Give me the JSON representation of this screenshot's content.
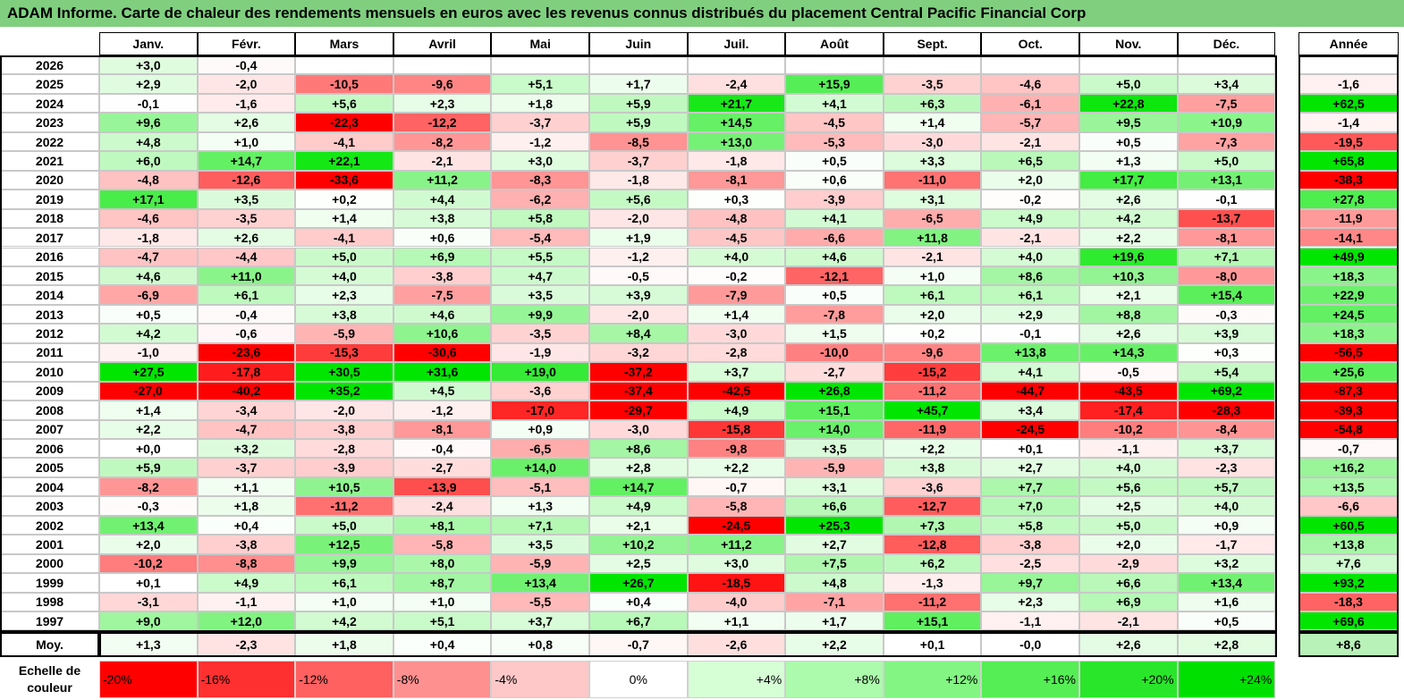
{
  "title": "ADAM Informe. Carte de chaleur des rendements mensuels en euros avec les revenus connus distribués du placement Central Pacific Financial Corp",
  "months": [
    "Janv.",
    "Févr.",
    "Mars",
    "Avril",
    "Mai",
    "Juin",
    "Juil.",
    "Août",
    "Sept.",
    "Oct.",
    "Nov.",
    "Déc."
  ],
  "year_header": "Année",
  "avg_label": "Moy.",
  "scale_label": "Echelle de couleur",
  "scale": [
    "-20%",
    "-16%",
    "-12%",
    "-8%",
    "-4%",
    "0%",
    "+4%",
    "+8%",
    "+12%",
    "+16%",
    "+20%",
    "+24%"
  ],
  "colors": {
    "negative": "#f8696b",
    "neutral": "#ffffff",
    "positive": "#63be7b",
    "header_bg": "#7fcf7f"
  },
  "chart_data": {
    "type": "heatmap",
    "title": "ADAM Informe. Carte de chaleur des rendements mensuels en euros avec les revenus connus distribués du placement Central Pacific Financial Corp",
    "columns": [
      "Janv.",
      "Févr.",
      "Mars",
      "Avril",
      "Mai",
      "Juin",
      "Juil.",
      "Août",
      "Sept.",
      "Oct.",
      "Nov.",
      "Déc."
    ],
    "rows": [
      {
        "year": "2026",
        "m": [
          "+3,0",
          "-0,4",
          "",
          "",
          "",
          "",
          "",
          "",
          "",
          "",
          "",
          ""
        ],
        "y": ""
      },
      {
        "year": "2025",
        "m": [
          "+2,9",
          "-2,0",
          "-10,5",
          "-9,6",
          "+5,1",
          "+1,7",
          "-2,4",
          "+15,9",
          "-3,5",
          "-4,6",
          "+5,0",
          "+3,4"
        ],
        "y": "-1,6"
      },
      {
        "year": "2024",
        "m": [
          "-0,1",
          "-1,6",
          "+5,6",
          "+2,3",
          "+1,8",
          "+5,9",
          "+21,7",
          "+4,1",
          "+6,3",
          "-6,1",
          "+22,8",
          "-7,5"
        ],
        "y": "+62,5"
      },
      {
        "year": "2023",
        "m": [
          "+9,6",
          "+2,6",
          "-22,3",
          "-12,2",
          "-3,7",
          "+5,9",
          "+14,5",
          "-4,5",
          "+1,4",
          "-5,7",
          "+9,5",
          "+10,9"
        ],
        "y": "-1,4"
      },
      {
        "year": "2022",
        "m": [
          "+4,8",
          "+1,0",
          "-4,1",
          "-8,2",
          "-1,2",
          "-8,5",
          "+13,0",
          "-5,3",
          "-3,0",
          "-2,1",
          "+0,5",
          "-7,3"
        ],
        "y": "-19,5"
      },
      {
        "year": "2021",
        "m": [
          "+6,0",
          "+14,7",
          "+22,1",
          "-2,1",
          "+3,0",
          "-3,7",
          "-1,8",
          "+0,5",
          "+3,3",
          "+6,5",
          "+1,3",
          "+5,0"
        ],
        "y": "+65,8"
      },
      {
        "year": "2020",
        "m": [
          "-4,8",
          "-12,6",
          "-33,6",
          "+11,2",
          "-8,3",
          "-1,8",
          "-8,1",
          "+0,6",
          "-11,0",
          "+2,0",
          "+17,7",
          "+13,1"
        ],
        "y": "-38,3"
      },
      {
        "year": "2019",
        "m": [
          "+17,1",
          "+3,5",
          "+0,2",
          "+4,4",
          "-6,2",
          "+5,6",
          "+0,3",
          "-3,9",
          "+3,1",
          "-0,2",
          "+2,6",
          "-0,1"
        ],
        "y": "+27,8"
      },
      {
        "year": "2018",
        "m": [
          "-4,6",
          "-3,5",
          "+1,4",
          "+3,8",
          "+5,8",
          "-2,0",
          "-4,8",
          "+4,1",
          "-6,5",
          "+4,9",
          "+4,2",
          "-13,7"
        ],
        "y": "-11,9"
      },
      {
        "year": "2017",
        "m": [
          "-1,8",
          "+2,6",
          "-4,1",
          "+0,6",
          "-5,4",
          "+1,9",
          "-4,5",
          "-6,6",
          "+11,8",
          "-2,1",
          "+2,2",
          "-8,1"
        ],
        "y": "-14,1"
      },
      {
        "year": "2016",
        "m": [
          "-4,7",
          "-4,4",
          "+5,0",
          "+6,9",
          "+5,5",
          "-1,2",
          "+4,0",
          "+4,6",
          "-2,1",
          "+4,0",
          "+19,6",
          "+7,1"
        ],
        "y": "+49,9"
      },
      {
        "year": "2015",
        "m": [
          "+4,6",
          "+11,0",
          "+4,0",
          "-3,8",
          "+4,7",
          "-0,5",
          "-0,2",
          "-12,1",
          "+1,0",
          "+8,6",
          "+10,3",
          "-8,0"
        ],
        "y": "+18,3"
      },
      {
        "year": "2014",
        "m": [
          "-6,9",
          "+6,1",
          "+2,3",
          "-7,5",
          "+3,5",
          "+3,9",
          "-7,9",
          "+0,5",
          "+6,1",
          "+6,1",
          "+2,1",
          "+15,4"
        ],
        "y": "+22,9"
      },
      {
        "year": "2013",
        "m": [
          "+0,5",
          "-0,4",
          "+3,8",
          "+4,6",
          "+9,9",
          "-2,0",
          "+1,4",
          "-7,8",
          "+2,0",
          "+2,9",
          "+8,8",
          "-0,3"
        ],
        "y": "+24,5"
      },
      {
        "year": "2012",
        "m": [
          "+4,2",
          "-0,6",
          "-5,9",
          "+10,6",
          "-3,5",
          "+8,4",
          "-3,0",
          "+1,5",
          "+0,2",
          "-0,1",
          "+2,6",
          "+3,9"
        ],
        "y": "+18,3"
      },
      {
        "year": "2011",
        "m": [
          "-1,0",
          "-23,6",
          "-15,3",
          "-30,6",
          "-1,9",
          "-3,2",
          "-2,8",
          "-10,0",
          "-9,6",
          "+13,8",
          "+14,3",
          "+0,3"
        ],
        "y": "-56,5"
      },
      {
        "year": "2010",
        "m": [
          "+27,5",
          "-17,8",
          "+30,5",
          "+31,6",
          "+19,0",
          "-37,2",
          "+3,7",
          "-2,7",
          "-15,2",
          "+4,1",
          "-0,5",
          "+5,4"
        ],
        "y": "+25,6"
      },
      {
        "year": "2009",
        "m": [
          "-27,0",
          "-40,2",
          "+35,2",
          "+4,5",
          "-3,6",
          "-37,4",
          "-42,5",
          "+26,8",
          "-11,2",
          "-44,7",
          "-43,5",
          "+69,2"
        ],
        "y": "-87,3"
      },
      {
        "year": "2008",
        "m": [
          "+1,4",
          "-3,4",
          "-2,0",
          "-1,2",
          "-17,0",
          "-29,7",
          "+4,9",
          "+15,1",
          "+45,7",
          "+3,4",
          "-17,4",
          "-28,3"
        ],
        "y": "-39,3"
      },
      {
        "year": "2007",
        "m": [
          "+2,2",
          "-4,7",
          "-3,8",
          "-8,1",
          "+0,9",
          "-3,0",
          "-15,8",
          "+14,0",
          "-11,9",
          "-24,5",
          "-10,2",
          "-8,4"
        ],
        "y": "-54,8"
      },
      {
        "year": "2006",
        "m": [
          "+0,0",
          "+3,2",
          "-2,8",
          "-0,4",
          "-6,5",
          "+8,6",
          "-9,8",
          "+3,5",
          "+2,2",
          "+0,1",
          "-1,1",
          "+3,7"
        ],
        "y": "-0,7"
      },
      {
        "year": "2005",
        "m": [
          "+5,9",
          "-3,7",
          "-3,9",
          "-2,7",
          "+14,0",
          "+2,8",
          "+2,2",
          "-5,9",
          "+3,8",
          "+2,7",
          "+4,0",
          "-2,3"
        ],
        "y": "+16,2"
      },
      {
        "year": "2004",
        "m": [
          "-8,2",
          "+1,1",
          "+10,5",
          "-13,9",
          "-5,1",
          "+14,7",
          "-0,7",
          "+3,1",
          "-3,6",
          "+7,7",
          "+5,6",
          "+5,7"
        ],
        "y": "+13,5"
      },
      {
        "year": "2003",
        "m": [
          "-0,3",
          "+1,8",
          "-11,2",
          "-2,4",
          "+1,3",
          "+4,9",
          "-5,8",
          "+6,6",
          "-12,7",
          "+7,0",
          "+2,5",
          "+4,0"
        ],
        "y": "-6,6"
      },
      {
        "year": "2002",
        "m": [
          "+13,4",
          "+0,4",
          "+5,0",
          "+8,1",
          "+7,1",
          "+2,1",
          "-24,5",
          "+25,3",
          "+7,3",
          "+5,8",
          "+5,0",
          "+0,9"
        ],
        "y": "+60,5"
      },
      {
        "year": "2001",
        "m": [
          "+2,0",
          "-3,8",
          "+12,5",
          "-5,8",
          "+3,5",
          "+10,2",
          "+11,2",
          "+2,7",
          "-12,8",
          "-3,8",
          "+2,0",
          "-1,7"
        ],
        "y": "+13,8"
      },
      {
        "year": "2000",
        "m": [
          "-10,2",
          "-8,8",
          "+9,9",
          "+8,0",
          "-5,9",
          "+2,5",
          "+3,0",
          "+7,5",
          "+6,2",
          "-2,5",
          "-2,9",
          "+3,2"
        ],
        "y": "+7,6"
      },
      {
        "year": "1999",
        "m": [
          "+0,1",
          "+4,9",
          "+6,1",
          "+8,7",
          "+13,4",
          "+26,7",
          "-18,5",
          "+4,8",
          "-1,3",
          "+9,7",
          "+6,6",
          "+13,4"
        ],
        "y": "+93,2"
      },
      {
        "year": "1998",
        "m": [
          "-3,1",
          "-1,1",
          "+1,0",
          "+1,0",
          "-5,5",
          "+0,4",
          "-4,0",
          "-7,1",
          "-11,2",
          "+2,3",
          "+6,9",
          "+1,6"
        ],
        "y": "-18,3"
      },
      {
        "year": "1997",
        "m": [
          "+9,0",
          "+12,0",
          "+4,2",
          "+5,1",
          "+3,7",
          "+6,7",
          "+1,1",
          "+1,7",
          "+15,1",
          "-1,1",
          "-2,1",
          "+0,5"
        ],
        "y": "+69,6"
      }
    ],
    "average": {
      "m": [
        "+1,3",
        "-2,3",
        "+1,8",
        "+0,4",
        "+0,8",
        "-0,7",
        "-2,6",
        "+2,2",
        "+0,1",
        "-0,0",
        "+2,6",
        "+2,8"
      ],
      "y": "+8,6"
    }
  }
}
